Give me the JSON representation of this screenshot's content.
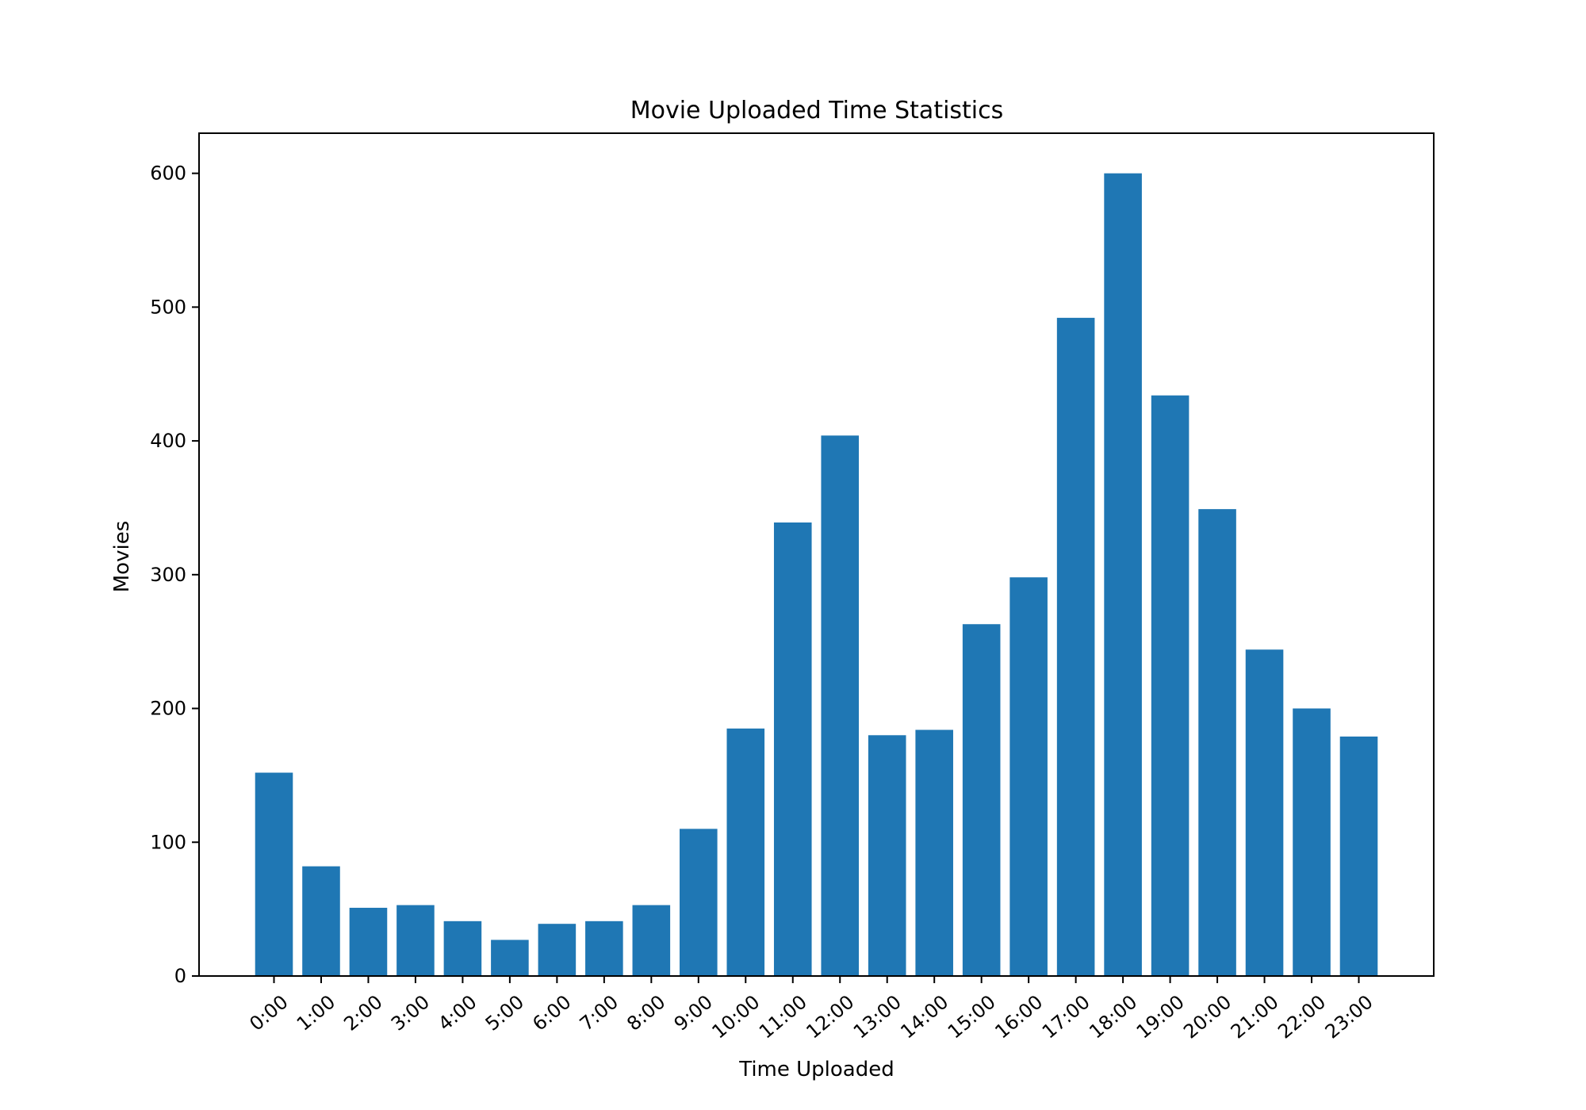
{
  "chart_data": {
    "type": "bar",
    "title": "Movie Uploaded Time Statistics",
    "xlabel": "Time Uploaded",
    "ylabel": "Movies",
    "categories": [
      "0:00",
      "1:00",
      "2:00",
      "3:00",
      "4:00",
      "5:00",
      "6:00",
      "7:00",
      "8:00",
      "9:00",
      "10:00",
      "11:00",
      "12:00",
      "13:00",
      "14:00",
      "15:00",
      "16:00",
      "17:00",
      "18:00",
      "19:00",
      "20:00",
      "21:00",
      "22:00",
      "23:00"
    ],
    "values": [
      152,
      82,
      51,
      53,
      41,
      27,
      39,
      41,
      53,
      110,
      185,
      339,
      404,
      180,
      184,
      263,
      298,
      492,
      600,
      434,
      349,
      244,
      200,
      179
    ],
    "ylim": [
      0,
      630
    ],
    "yticks": [
      0,
      100,
      200,
      300,
      400,
      500,
      600
    ],
    "bar_color": "#1f77b4",
    "grid": false
  }
}
